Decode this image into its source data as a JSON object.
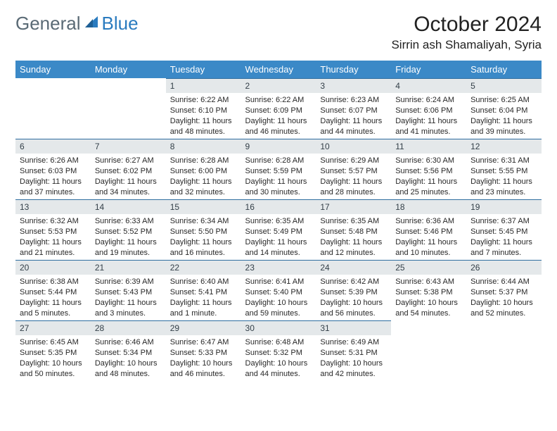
{
  "logo": {
    "text_gray": "General",
    "text_blue": "Blue"
  },
  "header": {
    "month_title": "October 2024",
    "location": "Sirrin ash Shamaliyah, Syria"
  },
  "calendar": {
    "type": "table",
    "columns": [
      "Sunday",
      "Monday",
      "Tuesday",
      "Wednesday",
      "Thursday",
      "Friday",
      "Saturday"
    ],
    "header_bg": "#3b89c7",
    "header_fg": "#ffffff",
    "daynum_bg": "#e4e8ea",
    "daynum_fg": "#344049",
    "row_border": "#2f6ea0",
    "body_fontsize": 11,
    "weeks": [
      [
        null,
        null,
        {
          "n": "1",
          "sunrise": "Sunrise: 6:22 AM",
          "sunset": "Sunset: 6:10 PM",
          "daylight": "Daylight: 11 hours and 48 minutes."
        },
        {
          "n": "2",
          "sunrise": "Sunrise: 6:22 AM",
          "sunset": "Sunset: 6:09 PM",
          "daylight": "Daylight: 11 hours and 46 minutes."
        },
        {
          "n": "3",
          "sunrise": "Sunrise: 6:23 AM",
          "sunset": "Sunset: 6:07 PM",
          "daylight": "Daylight: 11 hours and 44 minutes."
        },
        {
          "n": "4",
          "sunrise": "Sunrise: 6:24 AM",
          "sunset": "Sunset: 6:06 PM",
          "daylight": "Daylight: 11 hours and 41 minutes."
        },
        {
          "n": "5",
          "sunrise": "Sunrise: 6:25 AM",
          "sunset": "Sunset: 6:04 PM",
          "daylight": "Daylight: 11 hours and 39 minutes."
        }
      ],
      [
        {
          "n": "6",
          "sunrise": "Sunrise: 6:26 AM",
          "sunset": "Sunset: 6:03 PM",
          "daylight": "Daylight: 11 hours and 37 minutes."
        },
        {
          "n": "7",
          "sunrise": "Sunrise: 6:27 AM",
          "sunset": "Sunset: 6:02 PM",
          "daylight": "Daylight: 11 hours and 34 minutes."
        },
        {
          "n": "8",
          "sunrise": "Sunrise: 6:28 AM",
          "sunset": "Sunset: 6:00 PM",
          "daylight": "Daylight: 11 hours and 32 minutes."
        },
        {
          "n": "9",
          "sunrise": "Sunrise: 6:28 AM",
          "sunset": "Sunset: 5:59 PM",
          "daylight": "Daylight: 11 hours and 30 minutes."
        },
        {
          "n": "10",
          "sunrise": "Sunrise: 6:29 AM",
          "sunset": "Sunset: 5:57 PM",
          "daylight": "Daylight: 11 hours and 28 minutes."
        },
        {
          "n": "11",
          "sunrise": "Sunrise: 6:30 AM",
          "sunset": "Sunset: 5:56 PM",
          "daylight": "Daylight: 11 hours and 25 minutes."
        },
        {
          "n": "12",
          "sunrise": "Sunrise: 6:31 AM",
          "sunset": "Sunset: 5:55 PM",
          "daylight": "Daylight: 11 hours and 23 minutes."
        }
      ],
      [
        {
          "n": "13",
          "sunrise": "Sunrise: 6:32 AM",
          "sunset": "Sunset: 5:53 PM",
          "daylight": "Daylight: 11 hours and 21 minutes."
        },
        {
          "n": "14",
          "sunrise": "Sunrise: 6:33 AM",
          "sunset": "Sunset: 5:52 PM",
          "daylight": "Daylight: 11 hours and 19 minutes."
        },
        {
          "n": "15",
          "sunrise": "Sunrise: 6:34 AM",
          "sunset": "Sunset: 5:50 PM",
          "daylight": "Daylight: 11 hours and 16 minutes."
        },
        {
          "n": "16",
          "sunrise": "Sunrise: 6:35 AM",
          "sunset": "Sunset: 5:49 PM",
          "daylight": "Daylight: 11 hours and 14 minutes."
        },
        {
          "n": "17",
          "sunrise": "Sunrise: 6:35 AM",
          "sunset": "Sunset: 5:48 PM",
          "daylight": "Daylight: 11 hours and 12 minutes."
        },
        {
          "n": "18",
          "sunrise": "Sunrise: 6:36 AM",
          "sunset": "Sunset: 5:46 PM",
          "daylight": "Daylight: 11 hours and 10 minutes."
        },
        {
          "n": "19",
          "sunrise": "Sunrise: 6:37 AM",
          "sunset": "Sunset: 5:45 PM",
          "daylight": "Daylight: 11 hours and 7 minutes."
        }
      ],
      [
        {
          "n": "20",
          "sunrise": "Sunrise: 6:38 AM",
          "sunset": "Sunset: 5:44 PM",
          "daylight": "Daylight: 11 hours and 5 minutes."
        },
        {
          "n": "21",
          "sunrise": "Sunrise: 6:39 AM",
          "sunset": "Sunset: 5:43 PM",
          "daylight": "Daylight: 11 hours and 3 minutes."
        },
        {
          "n": "22",
          "sunrise": "Sunrise: 6:40 AM",
          "sunset": "Sunset: 5:41 PM",
          "daylight": "Daylight: 11 hours and 1 minute."
        },
        {
          "n": "23",
          "sunrise": "Sunrise: 6:41 AM",
          "sunset": "Sunset: 5:40 PM",
          "daylight": "Daylight: 10 hours and 59 minutes."
        },
        {
          "n": "24",
          "sunrise": "Sunrise: 6:42 AM",
          "sunset": "Sunset: 5:39 PM",
          "daylight": "Daylight: 10 hours and 56 minutes."
        },
        {
          "n": "25",
          "sunrise": "Sunrise: 6:43 AM",
          "sunset": "Sunset: 5:38 PM",
          "daylight": "Daylight: 10 hours and 54 minutes."
        },
        {
          "n": "26",
          "sunrise": "Sunrise: 6:44 AM",
          "sunset": "Sunset: 5:37 PM",
          "daylight": "Daylight: 10 hours and 52 minutes."
        }
      ],
      [
        {
          "n": "27",
          "sunrise": "Sunrise: 6:45 AM",
          "sunset": "Sunset: 5:35 PM",
          "daylight": "Daylight: 10 hours and 50 minutes."
        },
        {
          "n": "28",
          "sunrise": "Sunrise: 6:46 AM",
          "sunset": "Sunset: 5:34 PM",
          "daylight": "Daylight: 10 hours and 48 minutes."
        },
        {
          "n": "29",
          "sunrise": "Sunrise: 6:47 AM",
          "sunset": "Sunset: 5:33 PM",
          "daylight": "Daylight: 10 hours and 46 minutes."
        },
        {
          "n": "30",
          "sunrise": "Sunrise: 6:48 AM",
          "sunset": "Sunset: 5:32 PM",
          "daylight": "Daylight: 10 hours and 44 minutes."
        },
        {
          "n": "31",
          "sunrise": "Sunrise: 6:49 AM",
          "sunset": "Sunset: 5:31 PM",
          "daylight": "Daylight: 10 hours and 42 minutes."
        },
        null,
        null
      ]
    ]
  }
}
